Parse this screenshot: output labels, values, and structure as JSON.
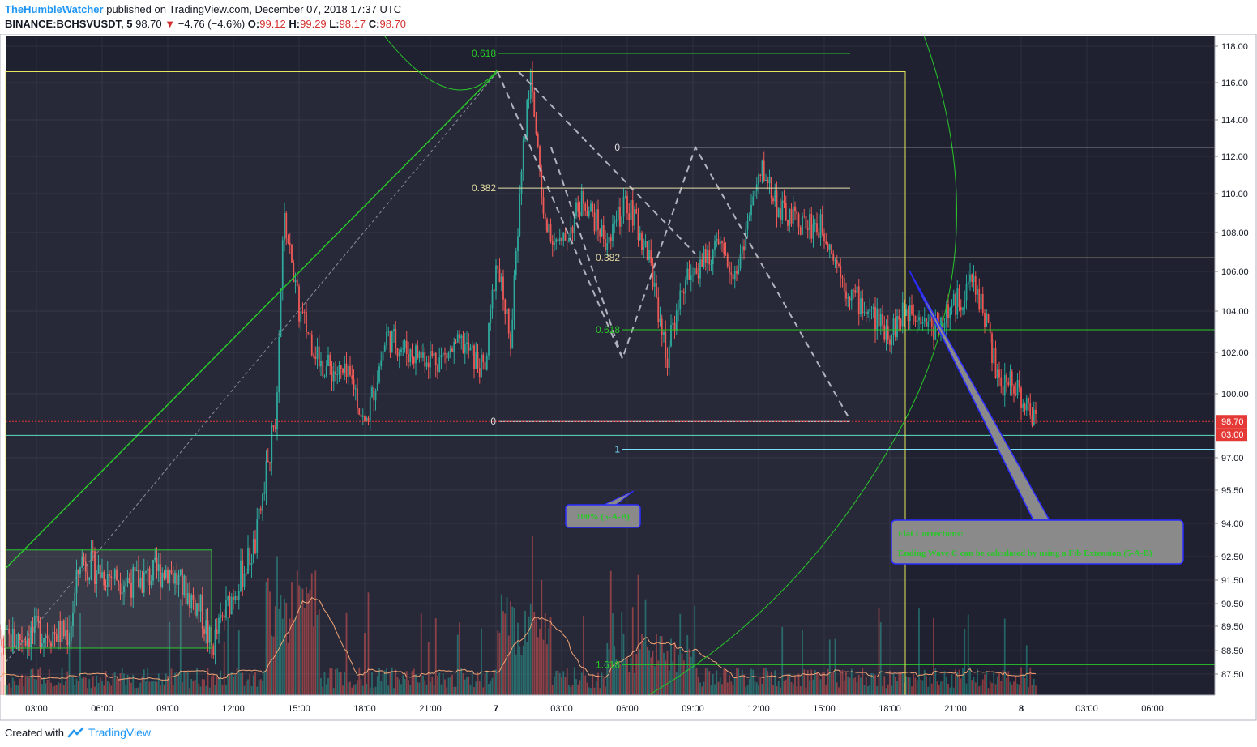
{
  "header": {
    "author": "TheHumbleWatcher",
    "published_text": "published on TradingView.com, December 07, 2018 17:37 UTC"
  },
  "symbol_line": {
    "symbol": "BINANCE:BCHSVUSDT, 5",
    "last": "98.70",
    "change": "−4.76 (−4.6%)",
    "o_label": "O:",
    "o_val": "99.12",
    "h_label": "H:",
    "h_val": "99.29",
    "l_label": "L:",
    "l_val": "98.17",
    "c_label": "C:",
    "c_val": "98.70"
  },
  "footer": {
    "created_with": "Created with",
    "brand": "TradingView"
  },
  "colors": {
    "background": "#1f2130",
    "grid": "#2c2f40",
    "up": "#26a69a",
    "down": "#ef5350",
    "green_line": "#28c728",
    "yellow_line": "#e6e65a",
    "price_tag": "#e53935",
    "volume_ma": "#f0a070",
    "callout_fill": "#8a8a8a",
    "callout_border": "#2a2aff"
  },
  "chart_data": {
    "type": "candlestick",
    "interval": "5",
    "y_axis_labels": [
      "118.00",
      "116.00",
      "114.00",
      "112.00",
      "110.00",
      "108.00",
      "106.00",
      "104.00",
      "102.00",
      "100.00",
      "97.00",
      "95.50",
      "94.00",
      "92.50",
      "91.50",
      "90.50",
      "89.50",
      "88.50",
      "87.50"
    ],
    "x_axis_labels": [
      "03:00",
      "06:00",
      "09:00",
      "12:00",
      "15:00",
      "18:00",
      "21:00",
      "7",
      "03:00",
      "06:00",
      "09:00",
      "12:00",
      "15:00",
      "18:00",
      "21:00",
      "8",
      "03:00",
      "06:00"
    ],
    "last_price": "98.70",
    "countdown": "03:00",
    "fib_labels": [
      {
        "text": "0.618",
        "price": 117.6,
        "color": "#28c728"
      },
      {
        "text": "0",
        "price": 112.5,
        "color": "#e0e0e0"
      },
      {
        "text": "0.382",
        "price": 110.3,
        "color": "#e0d8a0"
      },
      {
        "text": "0.382",
        "price": 106.7,
        "color": "#e0d8a0"
      },
      {
        "text": "0.618",
        "price": 103.1,
        "color": "#28c728"
      },
      {
        "text": "0",
        "price": 98.7,
        "color": "#e0e0e0"
      },
      {
        "text": "1",
        "price": 97.4,
        "color": "#7ae0ff"
      },
      {
        "text": "1.618",
        "price": 87.9,
        "color": "#28c728"
      }
    ],
    "callouts": [
      {
        "text": "100% (5-A-B)"
      },
      {
        "line1": "Flat Corrections:",
        "line2": "Ending Wave C can be calculated by using a Fib Extension (5-A-B)"
      }
    ],
    "key_prices": {
      "rally_start": 87.0,
      "wave5_top": 116.6,
      "wave_a_low": 101.7,
      "wave_b_top": 112.5,
      "current": 98.7
    }
  }
}
